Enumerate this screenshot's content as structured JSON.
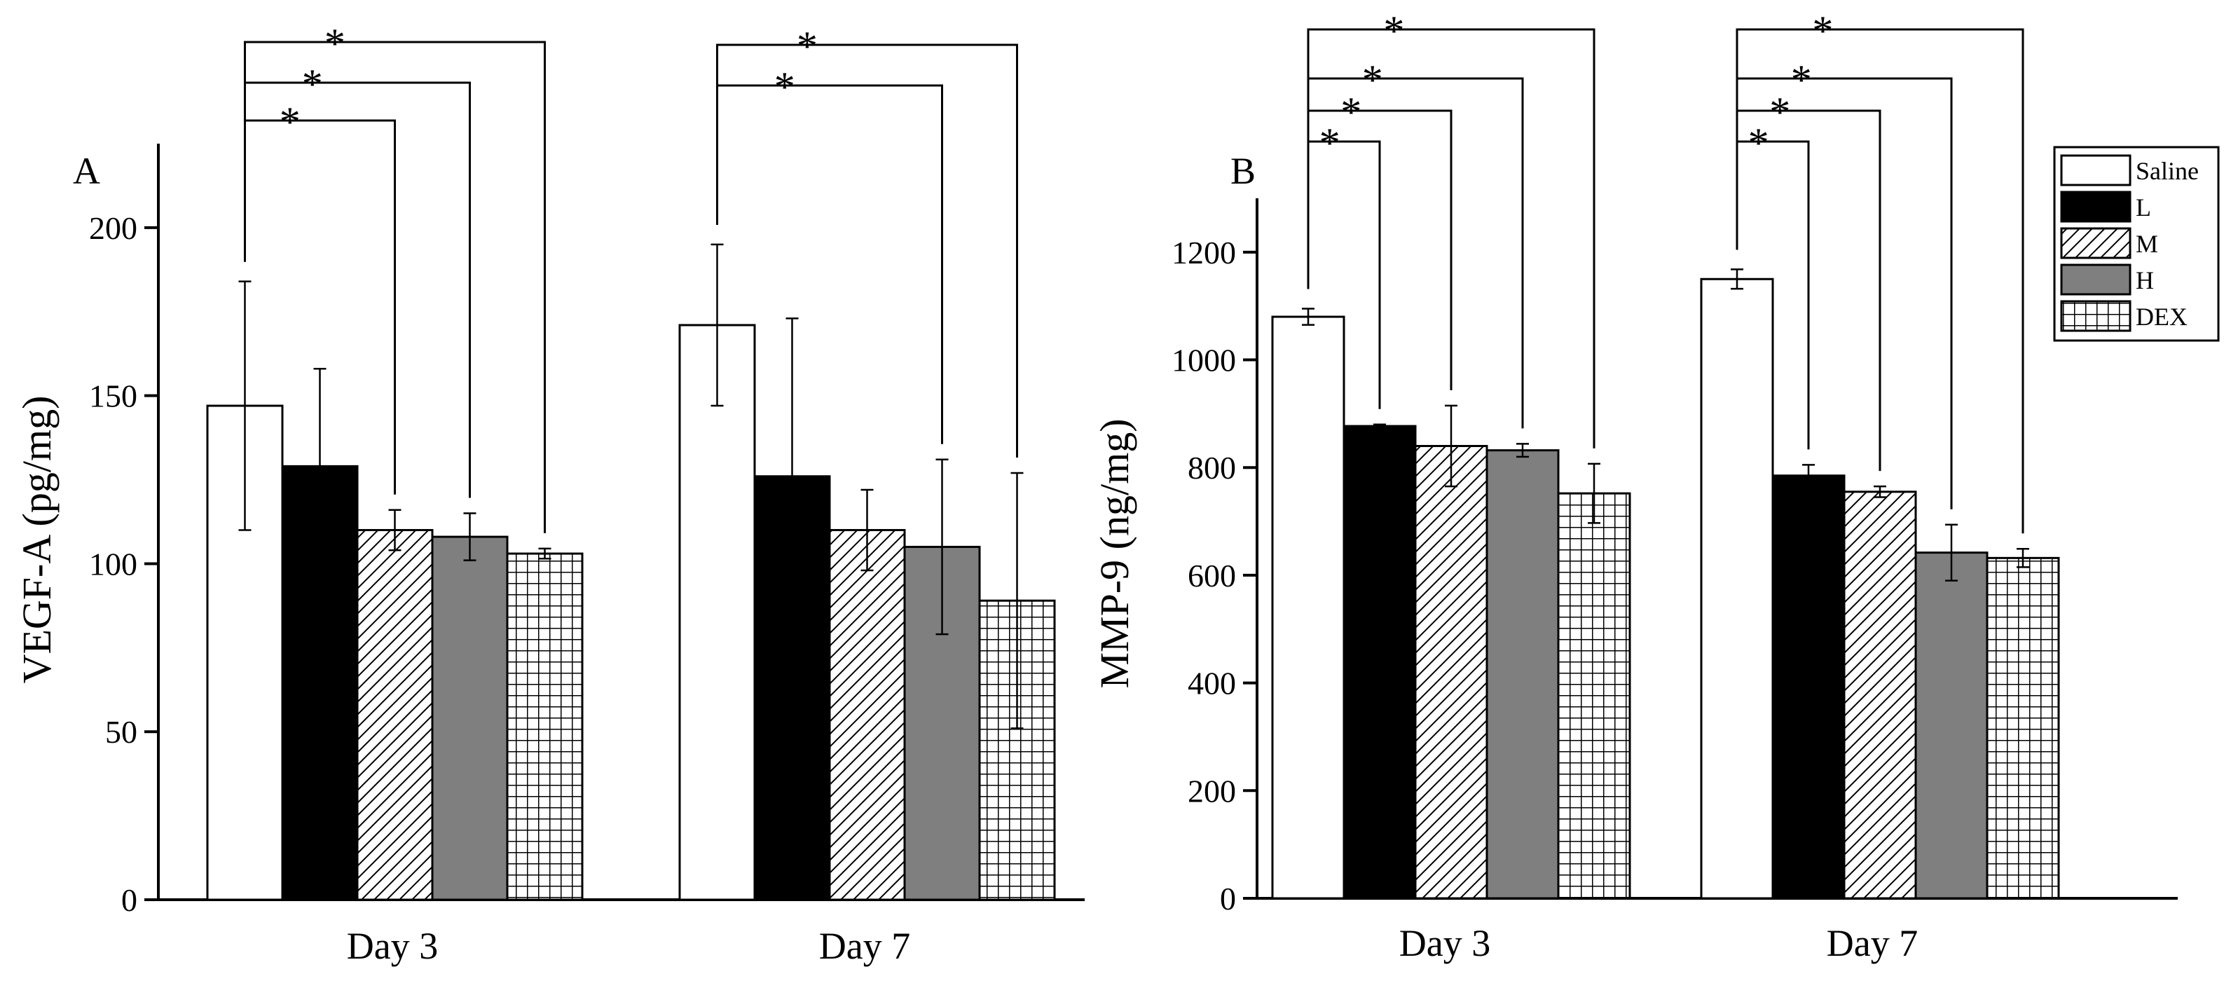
{
  "chart_data": [
    {
      "type": "bar",
      "panel_label": "A",
      "ylabel": "VEGF-A (pg/mg)",
      "ylim": [
        0,
        225
      ],
      "yticks": [
        0,
        50,
        100,
        150,
        200
      ],
      "categories": [
        "Day 3",
        "Day 7"
      ],
      "series": [
        {
          "name": "Saline",
          "values": [
            147,
            171
          ],
          "errors": [
            37,
            24
          ]
        },
        {
          "name": "L",
          "values": [
            129,
            126
          ],
          "errors": [
            29,
            47
          ]
        },
        {
          "name": "M",
          "values": [
            110,
            110
          ],
          "errors": [
            6,
            12
          ]
        },
        {
          "name": "H",
          "values": [
            108,
            105
          ],
          "errors": [
            7,
            26
          ]
        },
        {
          "name": "DEX",
          "values": [
            103,
            89
          ],
          "errors": [
            1.5,
            38
          ]
        }
      ],
      "significance": [
        {
          "category": 0,
          "from": 0,
          "to": 2,
          "label": "*"
        },
        {
          "category": 0,
          "from": 0,
          "to": 3,
          "label": "*"
        },
        {
          "category": 0,
          "from": 0,
          "to": 4,
          "label": "*"
        },
        {
          "category": 1,
          "from": 0,
          "to": 3,
          "label": "*"
        },
        {
          "category": 1,
          "from": 0,
          "to": 4,
          "label": "*"
        }
      ]
    },
    {
      "type": "bar",
      "panel_label": "B",
      "ylabel": "MMP-9 (ng/mg)",
      "ylim": [
        0,
        1300
      ],
      "yticks": [
        0,
        200,
        400,
        600,
        800,
        1000,
        1200
      ],
      "categories": [
        "Day 3",
        "Day 7"
      ],
      "series": [
        {
          "name": "Saline",
          "values": [
            1080,
            1150
          ],
          "errors": [
            15,
            18
          ]
        },
        {
          "name": "L",
          "values": [
            877,
            785
          ],
          "errors": [
            3,
            20
          ]
        },
        {
          "name": "M",
          "values": [
            840,
            755
          ],
          "errors": [
            75,
            10
          ]
        },
        {
          "name": "H",
          "values": [
            832,
            642
          ],
          "errors": [
            12,
            52
          ]
        },
        {
          "name": "DEX",
          "values": [
            752,
            632
          ],
          "errors": [
            55,
            17
          ]
        }
      ],
      "significance": [
        {
          "category": 0,
          "from": 0,
          "to": 1,
          "label": "*"
        },
        {
          "category": 0,
          "from": 0,
          "to": 2,
          "label": "*"
        },
        {
          "category": 0,
          "from": 0,
          "to": 3,
          "label": "*"
        },
        {
          "category": 0,
          "from": 0,
          "to": 4,
          "label": "*"
        },
        {
          "category": 1,
          "from": 0,
          "to": 1,
          "label": "*"
        },
        {
          "category": 1,
          "from": 0,
          "to": 2,
          "label": "*"
        },
        {
          "category": 1,
          "from": 0,
          "to": 3,
          "label": "*"
        },
        {
          "category": 1,
          "from": 0,
          "to": 4,
          "label": "*"
        }
      ]
    }
  ],
  "legend": {
    "entries": [
      {
        "name": "Saline",
        "fill": "white"
      },
      {
        "name": "L",
        "fill": "black"
      },
      {
        "name": "M",
        "fill": "hatch"
      },
      {
        "name": "H",
        "fill": "gray"
      },
      {
        "name": "DEX",
        "fill": "grid"
      }
    ]
  },
  "colors": {
    "black": "#000000",
    "gray": "#7f7f7f",
    "white": "#ffffff"
  }
}
